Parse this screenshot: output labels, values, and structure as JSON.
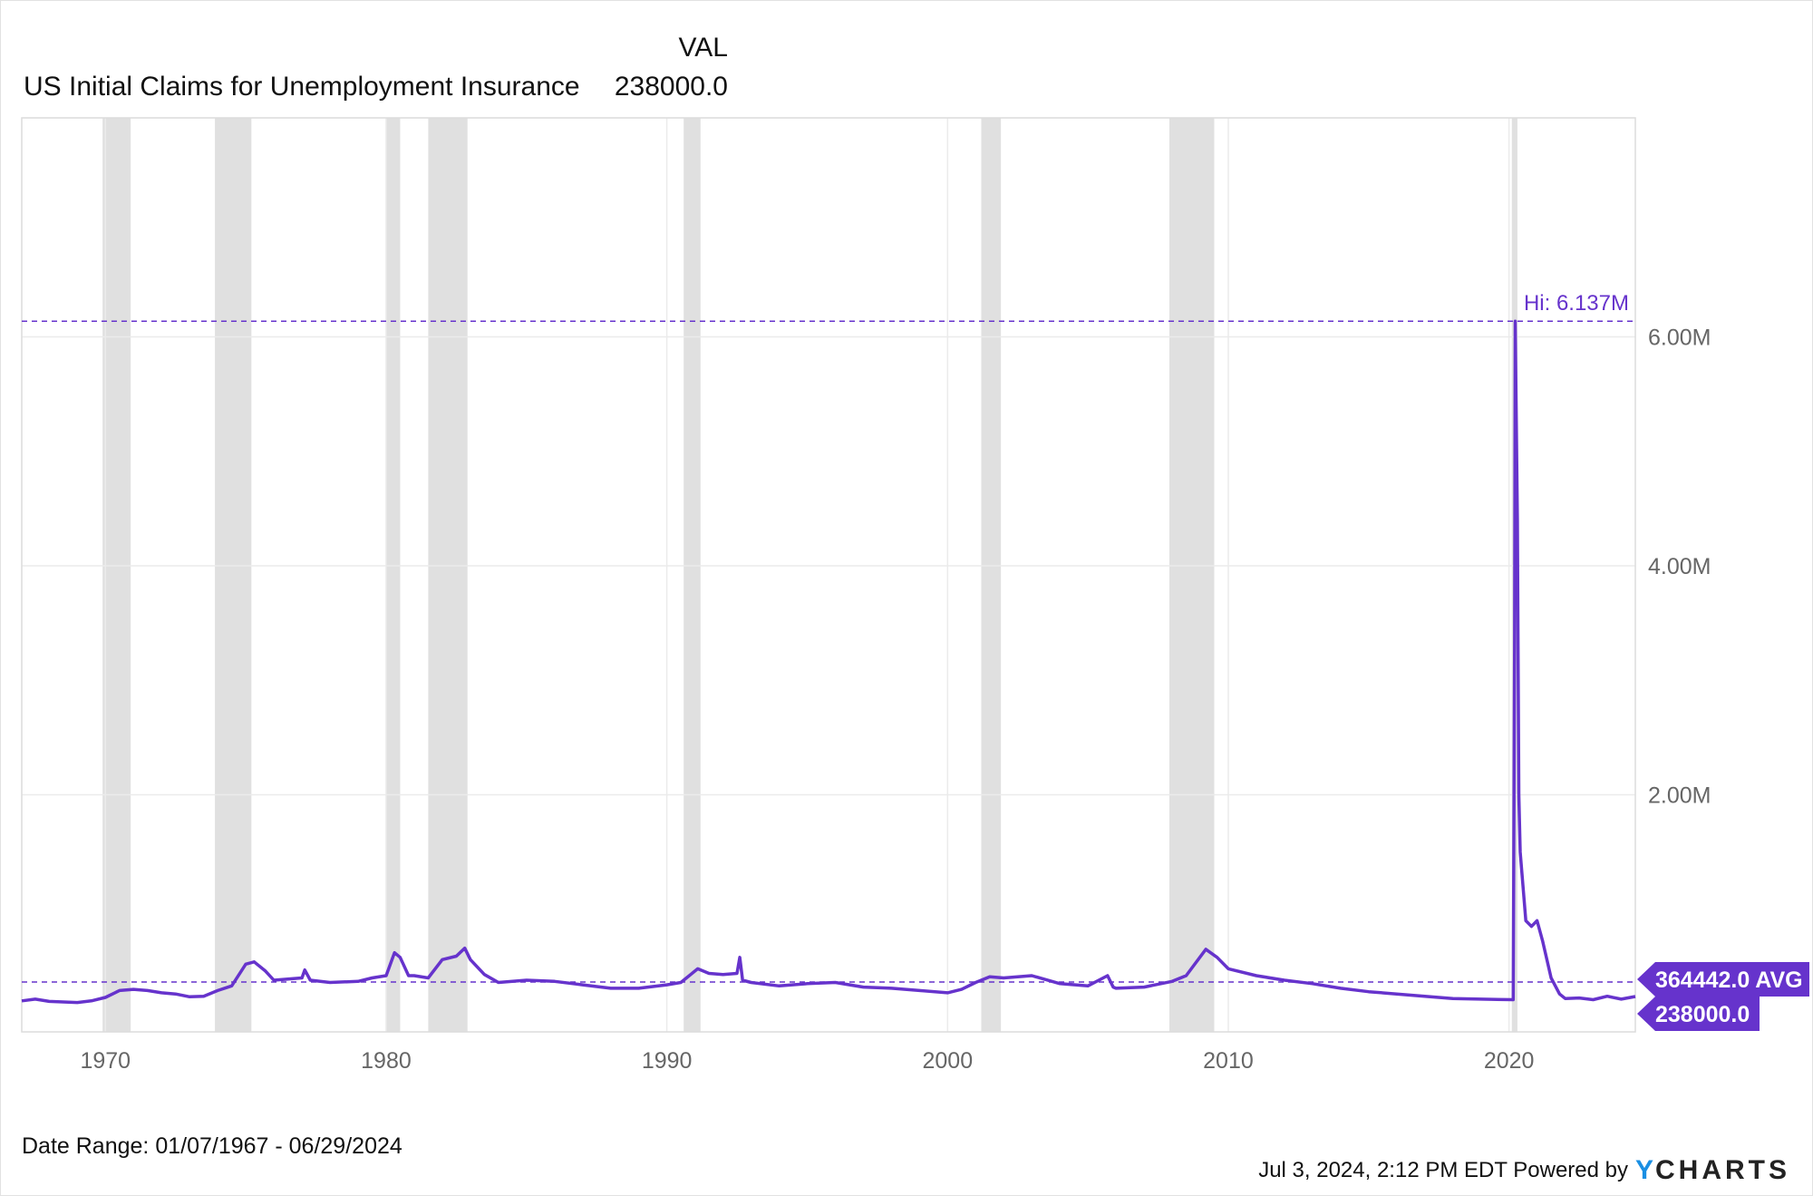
{
  "header": {
    "column_label": "VAL",
    "series_name": "US Initial Claims for Unemployment Insurance",
    "series_value": "238000.0"
  },
  "footer": {
    "date_range": "Date Range: 01/07/1967 - 06/29/2024",
    "timestamp": "Jul 3, 2024, 2:12 PM EDT",
    "powered_by": "Powered by",
    "brand_y": "Y",
    "brand_rest": "CHARTS"
  },
  "colors": {
    "series": "#6633cc",
    "recession": "#e0e0e0",
    "grid": "#ebebeb",
    "brand_blue": "#1a8fe3",
    "axis_text": "#666666"
  },
  "chart_data": {
    "type": "line",
    "title": "US Initial Claims for Unemployment Insurance",
    "xlim": [
      1967.02,
      2024.5
    ],
    "ylim": [
      0,
      7900000
    ],
    "grid": true,
    "x_ticks": [
      1970,
      1980,
      1990,
      2000,
      2010,
      2020
    ],
    "x_tick_labels": [
      "1970",
      "1980",
      "1990",
      "2000",
      "2010",
      "2020"
    ],
    "y_ticks": [
      2000000,
      4000000,
      6000000
    ],
    "y_tick_labels": [
      "2.00M",
      "4.00M",
      "6.00M"
    ],
    "recessions": [
      [
        1969.9,
        1970.9
      ],
      [
        1973.9,
        1975.2
      ],
      [
        1980.0,
        1980.5
      ],
      [
        1981.5,
        1982.9
      ],
      [
        1990.6,
        1991.2
      ],
      [
        2001.2,
        2001.9
      ],
      [
        2007.9,
        2009.5
      ],
      [
        2020.1,
        2020.3
      ]
    ],
    "high": {
      "value": 6137000,
      "label": "Hi: 6.137M"
    },
    "average": {
      "value": 364442,
      "label": "364442.0 AVG"
    },
    "last": {
      "value": 238000,
      "label": "238000.0"
    },
    "series": [
      {
        "name": "US Initial Claims for Unemployment Insurance",
        "points": [
          [
            1967.02,
            200000
          ],
          [
            1967.5,
            215000
          ],
          [
            1968,
            195000
          ],
          [
            1968.5,
            190000
          ],
          [
            1969,
            185000
          ],
          [
            1969.5,
            200000
          ],
          [
            1970,
            230000
          ],
          [
            1970.5,
            290000
          ],
          [
            1971,
            300000
          ],
          [
            1971.5,
            290000
          ],
          [
            1972,
            270000
          ],
          [
            1972.5,
            260000
          ],
          [
            1973,
            235000
          ],
          [
            1973.5,
            240000
          ],
          [
            1974,
            290000
          ],
          [
            1974.5,
            330000
          ],
          [
            1975,
            520000
          ],
          [
            1975.3,
            540000
          ],
          [
            1975.7,
            460000
          ],
          [
            1976,
            380000
          ],
          [
            1976.5,
            390000
          ],
          [
            1977,
            400000
          ],
          [
            1977.1,
            470000
          ],
          [
            1977.3,
            380000
          ],
          [
            1978,
            360000
          ],
          [
            1979,
            370000
          ],
          [
            1979.5,
            400000
          ],
          [
            1980,
            420000
          ],
          [
            1980.3,
            620000
          ],
          [
            1980.5,
            580000
          ],
          [
            1980.8,
            420000
          ],
          [
            1981,
            420000
          ],
          [
            1981.5,
            400000
          ],
          [
            1982,
            560000
          ],
          [
            1982.5,
            590000
          ],
          [
            1982.8,
            660000
          ],
          [
            1983,
            560000
          ],
          [
            1983.5,
            430000
          ],
          [
            1984,
            360000
          ],
          [
            1985,
            380000
          ],
          [
            1986,
            370000
          ],
          [
            1987,
            340000
          ],
          [
            1988,
            310000
          ],
          [
            1989,
            310000
          ],
          [
            1990,
            340000
          ],
          [
            1990.5,
            360000
          ],
          [
            1991.1,
            480000
          ],
          [
            1991.5,
            440000
          ],
          [
            1992,
            430000
          ],
          [
            1992.5,
            440000
          ],
          [
            1992.6,
            580000
          ],
          [
            1992.7,
            380000
          ],
          [
            1993,
            360000
          ],
          [
            1994,
            330000
          ],
          [
            1995,
            350000
          ],
          [
            1996,
            360000
          ],
          [
            1997,
            320000
          ],
          [
            1998,
            310000
          ],
          [
            1999,
            290000
          ],
          [
            2000,
            270000
          ],
          [
            2000.5,
            300000
          ],
          [
            2001,
            360000
          ],
          [
            2001.5,
            410000
          ],
          [
            2002,
            400000
          ],
          [
            2003,
            420000
          ],
          [
            2004,
            350000
          ],
          [
            2005,
            330000
          ],
          [
            2005.7,
            420000
          ],
          [
            2005.9,
            320000
          ],
          [
            2006,
            310000
          ],
          [
            2007,
            320000
          ],
          [
            2008,
            370000
          ],
          [
            2008.5,
            420000
          ],
          [
            2009.2,
            650000
          ],
          [
            2009.6,
            580000
          ],
          [
            2010,
            480000
          ],
          [
            2011,
            420000
          ],
          [
            2012,
            380000
          ],
          [
            2013,
            350000
          ],
          [
            2014,
            310000
          ],
          [
            2015,
            280000
          ],
          [
            2016,
            260000
          ],
          [
            2017,
            240000
          ],
          [
            2018,
            220000
          ],
          [
            2019,
            215000
          ],
          [
            2020.15,
            210000
          ],
          [
            2020.2,
            3300000
          ],
          [
            2020.22,
            6137000
          ],
          [
            2020.3,
            4400000
          ],
          [
            2020.35,
            2000000
          ],
          [
            2020.4,
            1500000
          ],
          [
            2020.6,
            900000
          ],
          [
            2020.8,
            850000
          ],
          [
            2021,
            900000
          ],
          [
            2021.2,
            720000
          ],
          [
            2021.5,
            400000
          ],
          [
            2021.8,
            260000
          ],
          [
            2022,
            220000
          ],
          [
            2022.5,
            225000
          ],
          [
            2023,
            210000
          ],
          [
            2023.5,
            240000
          ],
          [
            2024,
            215000
          ],
          [
            2024.5,
            238000
          ]
        ]
      }
    ]
  }
}
